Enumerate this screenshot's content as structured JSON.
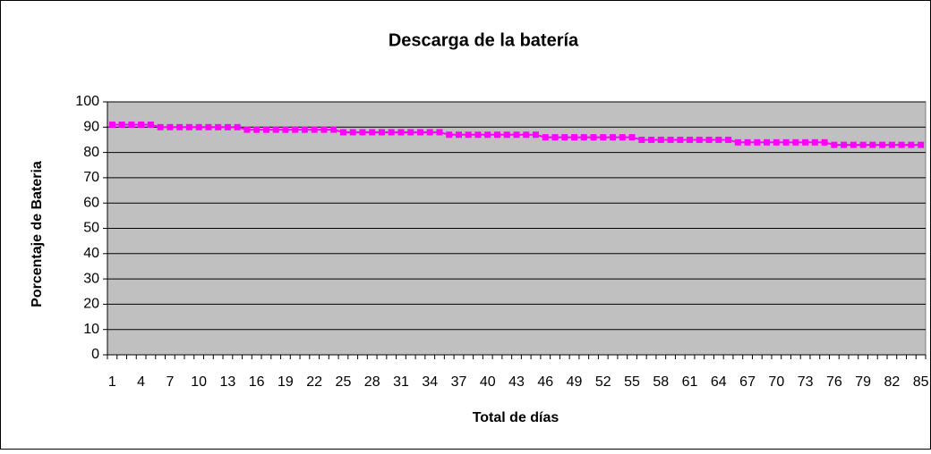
{
  "chart_data": {
    "type": "line",
    "title": "Descarga de la batería",
    "x_label": "Total de días",
    "y_label": "Porcentaje de Bateria",
    "categories": [
      "1",
      null,
      null,
      "4",
      null,
      null,
      "7",
      null,
      null,
      "10",
      null,
      null,
      "13",
      null,
      null,
      "16",
      null,
      null,
      "19",
      null,
      null,
      "22",
      null,
      null,
      "25",
      null,
      null,
      "28",
      null,
      null,
      "31",
      null,
      null,
      "34",
      null,
      null,
      "37",
      null,
      null,
      "40",
      null,
      null,
      "43",
      null,
      null,
      "46",
      null,
      null,
      "49",
      null,
      null,
      "52",
      null,
      null,
      "55",
      null,
      null,
      "58",
      null,
      null,
      "61",
      null,
      null,
      "64",
      null,
      null,
      "67",
      null,
      null,
      "70",
      null,
      null,
      "73",
      null,
      null,
      "76",
      null,
      null,
      "79",
      null,
      null,
      "82",
      null,
      null,
      "85"
    ],
    "series": [
      {
        "name": null,
        "color": "#ff00ff",
        "values": [
          91,
          91,
          91,
          91,
          91,
          90,
          90,
          90,
          90,
          90,
          90,
          90,
          90,
          90,
          89,
          89,
          89,
          89,
          89,
          89,
          89,
          89,
          89,
          89,
          88,
          88,
          88,
          88,
          88,
          88,
          88,
          88,
          88,
          88,
          88,
          87,
          87,
          87,
          87,
          87,
          87,
          87,
          87,
          87,
          87,
          86,
          86,
          86,
          86,
          86,
          86,
          86,
          86,
          86,
          86,
          85,
          85,
          85,
          85,
          85,
          85,
          85,
          85,
          85,
          85,
          84,
          84,
          84,
          84,
          84,
          84,
          84,
          84,
          84,
          84,
          83,
          83,
          83,
          83,
          83,
          83,
          83,
          83,
          83,
          83
        ]
      }
    ],
    "ylim": [
      0,
      100
    ],
    "yticks": [
      0,
      10,
      20,
      30,
      40,
      50,
      60,
      70,
      80,
      90,
      100
    ],
    "grid": true,
    "plot_background": "#c0c0c0"
  }
}
